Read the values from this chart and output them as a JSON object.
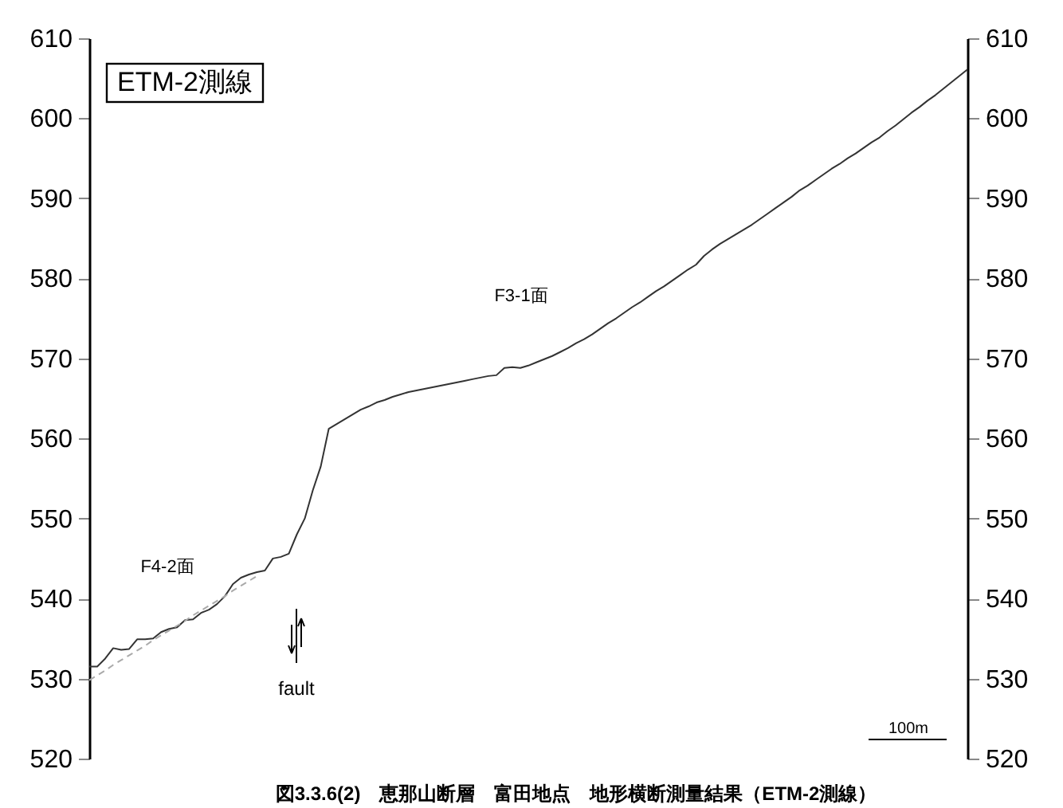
{
  "chart_data": {
    "type": "line",
    "title": "図3.3.6(2)　恵那山断層　富田地点　地形横断測量結果（ETM-2測線）",
    "categories": [
      null,
      null,
      null,
      null,
      null,
      null,
      null,
      null,
      null,
      null,
      null,
      null,
      null,
      null,
      null,
      null,
      null,
      null,
      null,
      null,
      null,
      null,
      null,
      null,
      null,
      null,
      null,
      null,
      null,
      null,
      null,
      null,
      null,
      null,
      null,
      null,
      null,
      null,
      null,
      null,
      null,
      null,
      null,
      null,
      null,
      null,
      null,
      null,
      null,
      null,
      null,
      null,
      null,
      null,
      null,
      null,
      null,
      null,
      null,
      null,
      null,
      null,
      null,
      null,
      null,
      null,
      null,
      null,
      null,
      null,
      null,
      null,
      null,
      null,
      null,
      null,
      null,
      null,
      null,
      null,
      null,
      null,
      null,
      null,
      null,
      null,
      null,
      null,
      null,
      null,
      null,
      null,
      null,
      null,
      null,
      null,
      null,
      null,
      null,
      null,
      null,
      null,
      null,
      null,
      null,
      null,
      null,
      null,
      null,
      null,
      null
    ],
    "series": [
      {
        "color": "#333333",
        "line_style": "solid",
        "values": [
          531.5,
          531.5,
          532.5,
          533.8,
          533.6,
          533.7,
          534.9,
          534.9,
          535.0,
          535.8,
          536.2,
          536.4,
          537.3,
          537.4,
          538.2,
          538.6,
          539.3,
          540.3,
          541.8,
          542.6,
          543.0,
          543.3,
          543.5,
          545.0,
          545.2,
          545.6,
          548.0,
          550.0,
          553.5,
          556.5,
          561.2,
          561.8,
          562.4,
          563.0,
          563.6,
          564.0,
          564.5,
          564.8,
          565.2,
          565.5,
          565.8,
          566.0,
          566.2,
          566.4,
          566.6,
          566.8,
          567.0,
          567.2,
          567.4,
          567.6,
          567.8,
          567.9,
          568.8,
          568.9,
          568.8,
          569.1,
          569.5,
          569.9,
          570.3,
          570.8,
          571.3,
          571.9,
          572.4,
          573.0,
          573.7,
          574.4,
          575.0,
          575.7,
          576.4,
          577.0,
          577.7,
          578.4,
          579.0,
          579.7,
          580.4,
          581.1,
          581.7,
          582.8,
          583.6,
          584.3,
          584.9,
          585.5,
          586.1,
          586.7,
          587.4,
          588.1,
          588.8,
          589.5,
          590.2,
          591.0,
          591.6,
          592.3,
          593.0,
          593.7,
          594.3,
          595.0,
          595.6,
          596.3,
          597.0,
          597.6,
          598.4,
          599.1,
          599.9,
          600.7,
          601.4,
          602.2,
          602.9,
          603.7,
          604.5,
          605.3,
          606.1
        ]
      },
      {
        "color": "#aaaaaa",
        "line_style": "dashed",
        "values": [
          529.8,
          530.4,
          531.0,
          531.7,
          532.3,
          532.9,
          533.5,
          534.1,
          534.8,
          535.4,
          536.0,
          536.6,
          537.2,
          537.9,
          538.5,
          539.1,
          539.7,
          540.3,
          541.0,
          541.6,
          542.2,
          542.8,
          null,
          null,
          null,
          null,
          null,
          null,
          null,
          null,
          null,
          null,
          null,
          null,
          null,
          null,
          null,
          null,
          null,
          null,
          null,
          null,
          null,
          null,
          null,
          null,
          null,
          null,
          null,
          null,
          null,
          null,
          null,
          null,
          null,
          null,
          null,
          null,
          null,
          null,
          null,
          null,
          null,
          null,
          null,
          null,
          null,
          null,
          null,
          null,
          null,
          null,
          null,
          null,
          null,
          null,
          null,
          null,
          null,
          null,
          null,
          null,
          null,
          null,
          null,
          null,
          null,
          null,
          null,
          null,
          null,
          null,
          null,
          null,
          null,
          null,
          null,
          null,
          null,
          null,
          null,
          null,
          null,
          null,
          null,
          null,
          null,
          null,
          null,
          null,
          null
        ]
      }
    ],
    "ylim": [
      520,
      610
    ],
    "yticks": [
      520,
      530,
      540,
      550,
      560,
      570,
      580,
      590,
      600,
      610
    ],
    "y2lim": [
      520,
      610
    ],
    "y2ticks": [
      520,
      530,
      540,
      550,
      560,
      570,
      580,
      590,
      600,
      610
    ],
    "tick_labels": "y",
    "grid": false,
    "legend": false,
    "marker": "none",
    "annotations": [
      "ETM-2測線",
      "F3-1面",
      "F4-2面",
      "fault",
      "100m"
    ]
  }
}
